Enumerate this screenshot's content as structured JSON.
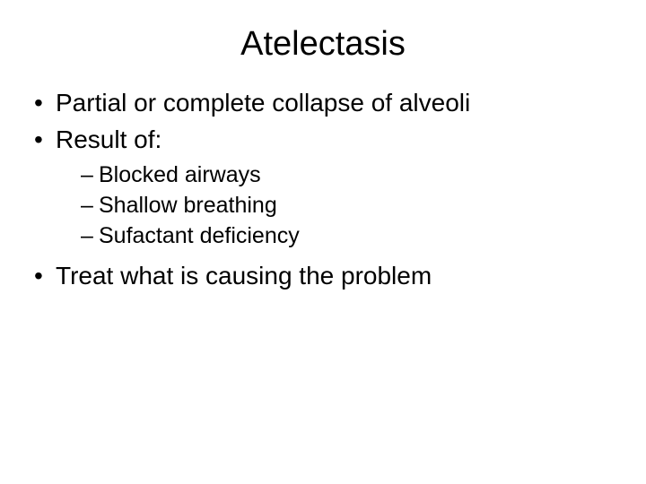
{
  "slide": {
    "title": "Atelectasis",
    "title_fontsize": 38,
    "body_fontsize_l1": 28,
    "body_fontsize_l2": 25,
    "text_color": "#000000",
    "background_color": "#ffffff",
    "font_family": "Arial",
    "bullets": {
      "b1": "Partial or complete collapse of alveoli",
      "b2": "Result of:",
      "b2_sub": {
        "s1": "Blocked airways",
        "s2": "Shallow breathing",
        "s3": "Sufactant deficiency"
      },
      "b3": "Treat what is causing the problem"
    },
    "l1_marker": "•",
    "l2_marker": "–"
  }
}
